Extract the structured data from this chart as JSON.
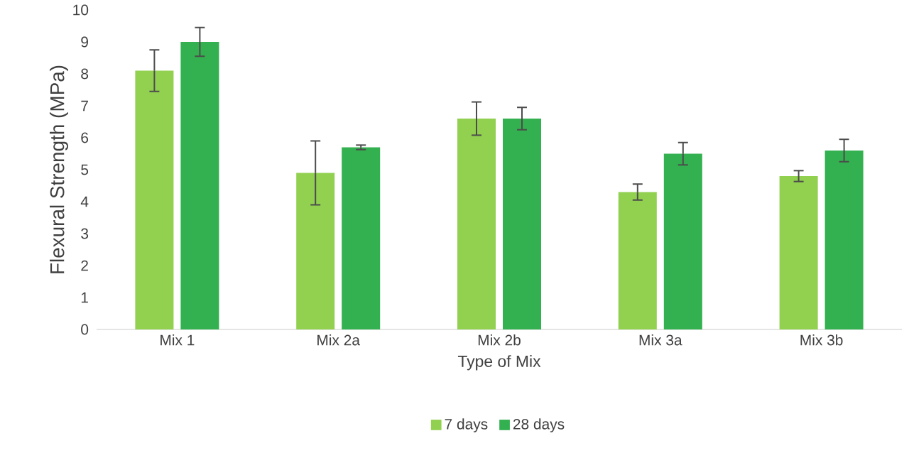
{
  "chart_data": {
    "type": "bar",
    "xlabel": "Type of Mix",
    "ylabel": "Flexural Strength (MPa)",
    "categories": [
      "Mix 1",
      "Mix 2a",
      "Mix 2b",
      "Mix 3a",
      "Mix 3b"
    ],
    "series": [
      {
        "name": "7 days",
        "color": "#92d050",
        "values": [
          8.1,
          4.9,
          6.6,
          4.3,
          4.8
        ],
        "errors": [
          0.65,
          1.0,
          0.52,
          0.25,
          0.17
        ]
      },
      {
        "name": "28 days",
        "color": "#33b04f",
        "values": [
          9.0,
          5.7,
          6.6,
          5.5,
          5.6
        ],
        "errors": [
          0.45,
          0.07,
          0.35,
          0.35,
          0.35
        ]
      }
    ],
    "ylim": [
      0,
      10
    ],
    "yticks": [
      0,
      1,
      2,
      3,
      4,
      5,
      6,
      7,
      8,
      9,
      10
    ],
    "legend": "bottom"
  }
}
